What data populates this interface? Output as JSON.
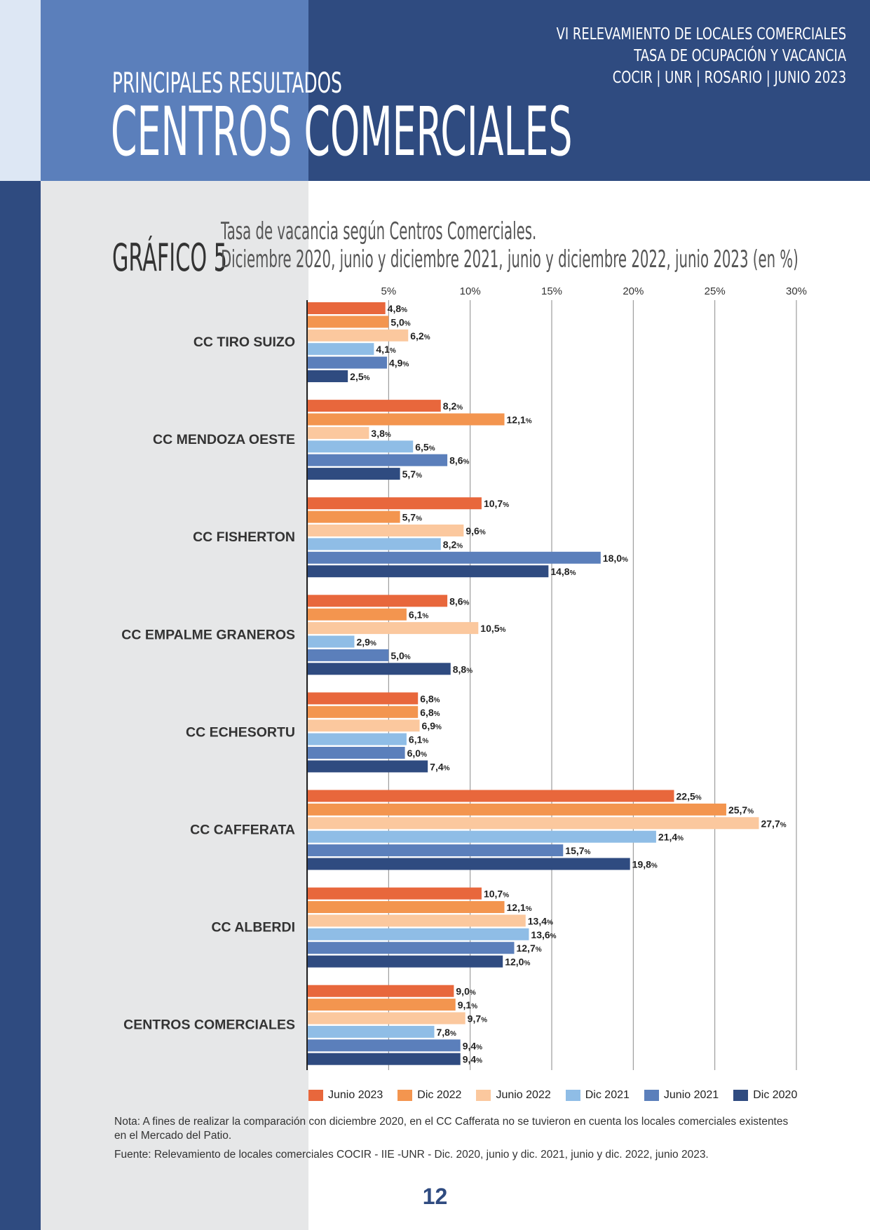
{
  "header": {
    "right_lines": [
      "VI RELEVAMIENTO DE LOCALES COMERCIALES",
      "TASA DE OCUPACIÓN Y VACANCIA",
      "COCIR | UNR | ROSARIO | JUNIO 2023"
    ],
    "subtitle": "PRINCIPALES RESULTADOS",
    "title": "CENTROS COMERCIALES"
  },
  "grafico_label": "GRÁFICO 5",
  "chart_title_lines": [
    "Tasa de vacancia según Centros Comerciales.",
    "Diciembre 2020, junio y diciembre 2021, junio y diciembre 2022, junio 2023 (en %)"
  ],
  "colors": {
    "Junio 2023": "#e8673c",
    "Dic 2022": "#f3954f",
    "Junio 2022": "#fbc89e",
    "Dic 2021": "#8fbde6",
    "Junio 2021": "#5b7fbb",
    "Dic 2020": "#2f4b80"
  },
  "chart_data": {
    "type": "bar",
    "orientation": "horizontal",
    "title": "Tasa de vacancia según Centros Comerciales. Diciembre 2020, junio y diciembre 2021, junio y diciembre 2022, junio 2023 (en %)",
    "categories": [
      "CC TIRO SUIZO",
      "CC MENDOZA OESTE",
      "CC FISHERTON",
      "CC EMPALME GRANEROS",
      "CC ECHESORTU",
      "CC CAFFERATA",
      "CC ALBERDI",
      "CENTROS COMERCIALES"
    ],
    "series": [
      {
        "name": "Junio 2023",
        "values": [
          4.8,
          8.2,
          10.7,
          8.6,
          6.8,
          22.5,
          10.7,
          9.0
        ]
      },
      {
        "name": "Dic 2022",
        "values": [
          5.0,
          12.1,
          5.7,
          6.1,
          6.8,
          25.7,
          12.1,
          9.1
        ]
      },
      {
        "name": "Junio 2022",
        "values": [
          6.2,
          3.8,
          9.6,
          10.5,
          6.9,
          27.7,
          13.4,
          9.7
        ]
      },
      {
        "name": "Dic 2021",
        "values": [
          4.1,
          6.5,
          8.2,
          2.9,
          6.1,
          21.4,
          13.6,
          7.8
        ]
      },
      {
        "name": "Junio 2021",
        "values": [
          4.9,
          8.6,
          18.0,
          5.0,
          6.0,
          15.7,
          12.7,
          9.4
        ]
      },
      {
        "name": "Dic 2020",
        "values": [
          2.5,
          5.7,
          14.8,
          8.8,
          7.4,
          19.8,
          12.0,
          9.4
        ]
      }
    ],
    "value_labels": [
      [
        "4,8",
        "5,0",
        "6,2",
        "4,1",
        "4,9",
        "2,5"
      ],
      [
        "8,2",
        "12,1",
        "3,8",
        "6,5",
        "8,6",
        "5,7"
      ],
      [
        "10,7",
        "5,7",
        "9,6",
        "8,2",
        "18,0",
        "14,8"
      ],
      [
        "8,6",
        "6,1",
        "10,5",
        "2,9",
        "5,0",
        "8,8"
      ],
      [
        "6,8",
        "6,8",
        "6,9",
        "6,1",
        "6,0",
        "7,4"
      ],
      [
        "22,5",
        "25,7",
        "27,7",
        "21,4",
        "15,7",
        "19,8"
      ],
      [
        "10,7",
        "12,1",
        "13,4",
        "13,6",
        "12,7",
        "12,0"
      ],
      [
        "9,0",
        "9,1",
        "9,7",
        "7,8",
        "9,4",
        "9,4"
      ]
    ],
    "value_unit": "%",
    "xticks": [
      5,
      10,
      15,
      20,
      25,
      30
    ],
    "xtick_labels": [
      "5%",
      "10%",
      "15%",
      "20%",
      "25%",
      "30%"
    ],
    "xlim": [
      0,
      30
    ],
    "grid": true,
    "legend_position": "bottom"
  },
  "note": "Nota: A fines de realizar la comparación con diciembre 2020, en el CC Cafferata no se tuvieron en cuenta los locales comerciales existentes en el Mercado del Patio.",
  "source": "Fuente: Relevamiento de locales comerciales COCIR - IIE -UNR - Dic. 2020, junio y dic. 2021, junio y dic. 2022, junio 2023.",
  "page_number": "12"
}
